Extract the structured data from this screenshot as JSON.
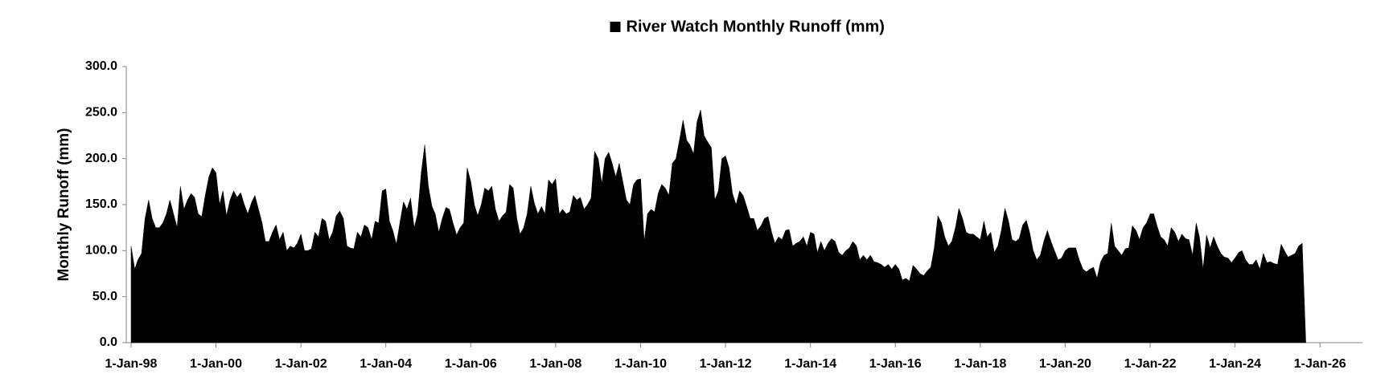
{
  "chart_data": {
    "type": "area",
    "legend": "top",
    "y_label": "Monthly Runoff (mm)",
    "xlim": [
      "1998-01-01",
      "2027-01-01"
    ],
    "xticks": [
      {
        "value": "1998-01-01",
        "label": "1-Jan-98"
      },
      {
        "value": "2000-01-01",
        "label": "1-Jan-00"
      },
      {
        "value": "2002-01-01",
        "label": "1-Jan-02"
      },
      {
        "value": "2004-01-01",
        "label": "1-Jan-04"
      },
      {
        "value": "2006-01-01",
        "label": "1-Jan-06"
      },
      {
        "value": "2008-01-01",
        "label": "1-Jan-08"
      },
      {
        "value": "2010-01-01",
        "label": "1-Jan-10"
      },
      {
        "value": "2012-01-01",
        "label": "1-Jan-12"
      },
      {
        "value": "2014-01-01",
        "label": "1-Jan-14"
      },
      {
        "value": "2016-01-01",
        "label": "1-Jan-16"
      },
      {
        "value": "2018-01-01",
        "label": "1-Jan-18"
      },
      {
        "value": "2020-01-01",
        "label": "1-Jan-20"
      },
      {
        "value": "2022-01-01",
        "label": "1-Jan-22"
      },
      {
        "value": "2024-01-01",
        "label": "1-Jan-24"
      },
      {
        "value": "2026-01-01",
        "label": "1-Jan-26"
      }
    ],
    "ylim": [
      0,
      300
    ],
    "yticks": [
      {
        "value": 0,
        "label": "0.0"
      },
      {
        "value": 50,
        "label": "50.0"
      },
      {
        "value": 100,
        "label": "100.0"
      },
      {
        "value": 150,
        "label": "150.0"
      },
      {
        "value": 200,
        "label": "200.0"
      },
      {
        "value": 250,
        "label": "250.0"
      },
      {
        "value": 300,
        "label": "300.0"
      }
    ],
    "x": [
      "1998-01-01",
      "1998-02-01",
      "1998-03-01",
      "1998-04-01",
      "1998-05-01",
      "1998-06-01",
      "1998-07-01",
      "1998-08-01",
      "1998-09-01",
      "1998-10-01",
      "1998-11-01",
      "1998-12-01",
      "1999-01-01",
      "1999-02-01",
      "1999-03-01",
      "1999-04-01",
      "1999-05-01",
      "1999-06-01",
      "1999-07-01",
      "1999-08-01",
      "1999-09-01",
      "1999-10-01",
      "1999-11-01",
      "1999-12-01",
      "2000-01-01",
      "2000-02-01",
      "2000-03-01",
      "2000-04-01",
      "2000-05-01",
      "2000-06-01",
      "2000-07-01",
      "2000-08-01",
      "2000-09-01",
      "2000-10-01",
      "2000-11-01",
      "2000-12-01",
      "2001-01-01",
      "2001-02-01",
      "2001-03-01",
      "2001-04-01",
      "2001-05-01",
      "2001-06-01",
      "2001-07-01",
      "2001-08-01",
      "2001-09-01",
      "2001-10-01",
      "2001-11-01",
      "2001-12-01",
      "2002-01-01",
      "2002-02-01",
      "2002-03-01",
      "2002-04-01",
      "2002-05-01",
      "2002-06-01",
      "2002-07-01",
      "2002-08-01",
      "2002-09-01",
      "2002-10-01",
      "2002-11-01",
      "2002-12-01",
      "2003-01-01",
      "2003-02-01",
      "2003-03-01",
      "2003-04-01",
      "2003-05-01",
      "2003-06-01",
      "2003-07-01",
      "2003-08-01",
      "2003-09-01",
      "2003-10-01",
      "2003-11-01",
      "2003-12-01",
      "2004-01-01",
      "2004-02-01",
      "2004-03-01",
      "2004-04-01",
      "2004-05-01",
      "2004-06-01",
      "2004-07-01",
      "2004-08-01",
      "2004-09-01",
      "2004-10-01",
      "2004-11-01",
      "2004-12-01",
      "2005-01-01",
      "2005-02-01",
      "2005-03-01",
      "2005-04-01",
      "2005-05-01",
      "2005-06-01",
      "2005-07-01",
      "2005-08-01",
      "2005-09-01",
      "2005-10-01",
      "2005-11-01",
      "2005-12-01",
      "2006-01-01",
      "2006-02-01",
      "2006-03-01",
      "2006-04-01",
      "2006-05-01",
      "2006-06-01",
      "2006-07-01",
      "2006-08-01",
      "2006-09-01",
      "2006-10-01",
      "2006-11-01",
      "2006-12-01",
      "2007-01-01",
      "2007-02-01",
      "2007-03-01",
      "2007-04-01",
      "2007-05-01",
      "2007-06-01",
      "2007-07-01",
      "2007-08-01",
      "2007-09-01",
      "2007-10-01",
      "2007-11-01",
      "2007-12-01",
      "2008-01-01",
      "2008-02-01",
      "2008-03-01",
      "2008-04-01",
      "2008-05-01",
      "2008-06-01",
      "2008-07-01",
      "2008-08-01",
      "2008-09-01",
      "2008-10-01",
      "2008-11-01",
      "2008-12-01",
      "2009-01-01",
      "2009-02-01",
      "2009-03-01",
      "2009-04-01",
      "2009-05-01",
      "2009-06-01",
      "2009-07-01",
      "2009-08-01",
      "2009-09-01",
      "2009-10-01",
      "2009-11-01",
      "2009-12-01",
      "2010-01-01",
      "2010-02-01",
      "2010-03-01",
      "2010-04-01",
      "2010-05-01",
      "2010-06-01",
      "2010-07-01",
      "2010-08-01",
      "2010-09-01",
      "2010-10-01",
      "2010-11-01",
      "2010-12-01",
      "2011-01-01",
      "2011-02-01",
      "2011-03-01",
      "2011-04-01",
      "2011-05-01",
      "2011-06-01",
      "2011-07-01",
      "2011-08-01",
      "2011-09-01",
      "2011-10-01",
      "2011-11-01",
      "2011-12-01",
      "2012-01-01",
      "2012-02-01",
      "2012-03-01",
      "2012-04-01",
      "2012-05-01",
      "2012-06-01",
      "2012-07-01",
      "2012-08-01",
      "2012-09-01",
      "2012-10-01",
      "2012-11-01",
      "2012-12-01",
      "2013-01-01",
      "2013-02-01",
      "2013-03-01",
      "2013-04-01",
      "2013-05-01",
      "2013-06-01",
      "2013-07-01",
      "2013-08-01",
      "2013-09-01",
      "2013-10-01",
      "2013-11-01",
      "2013-12-01",
      "2014-01-01",
      "2014-02-01",
      "2014-03-01",
      "2014-04-01",
      "2014-05-01",
      "2014-06-01",
      "2014-07-01",
      "2014-08-01",
      "2014-09-01",
      "2014-10-01",
      "2014-11-01",
      "2014-12-01",
      "2015-01-01",
      "2015-02-01",
      "2015-03-01",
      "2015-04-01",
      "2015-05-01",
      "2015-06-01",
      "2015-07-01",
      "2015-08-01",
      "2015-09-01",
      "2015-10-01",
      "2015-11-01",
      "2015-12-01",
      "2016-01-01",
      "2016-02-01",
      "2016-03-01",
      "2016-04-01",
      "2016-05-01",
      "2016-06-01",
      "2016-07-01",
      "2016-08-01",
      "2016-09-01",
      "2016-10-01",
      "2016-11-01",
      "2016-12-01",
      "2017-01-01",
      "2017-02-01",
      "2017-03-01",
      "2017-04-01",
      "2017-05-01",
      "2017-06-01",
      "2017-07-01",
      "2017-08-01",
      "2017-09-01",
      "2017-10-01",
      "2017-11-01",
      "2017-12-01",
      "2018-01-01",
      "2018-02-01",
      "2018-03-01",
      "2018-04-01",
      "2018-05-01",
      "2018-06-01",
      "2018-07-01",
      "2018-08-01",
      "2018-09-01",
      "2018-10-01",
      "2018-11-01",
      "2018-12-01",
      "2019-01-01",
      "2019-02-01",
      "2019-03-01",
      "2019-04-01",
      "2019-05-01",
      "2019-06-01",
      "2019-07-01",
      "2019-08-01",
      "2019-09-01",
      "2019-10-01",
      "2019-11-01",
      "2019-12-01",
      "2020-01-01",
      "2020-02-01",
      "2020-03-01",
      "2020-04-01",
      "2020-05-01",
      "2020-06-01",
      "2020-07-01",
      "2020-08-01",
      "2020-09-01",
      "2020-10-01",
      "2020-11-01",
      "2020-12-01",
      "2021-01-01",
      "2021-02-01",
      "2021-03-01",
      "2021-04-01",
      "2021-05-01",
      "2021-06-01",
      "2021-07-01",
      "2021-08-01",
      "2021-09-01",
      "2021-10-01",
      "2021-11-01",
      "2021-12-01",
      "2022-01-01",
      "2022-02-01",
      "2022-03-01",
      "2022-04-01",
      "2022-05-01",
      "2022-06-01",
      "2022-07-01",
      "2022-08-01",
      "2022-09-01",
      "2022-10-01",
      "2022-11-01",
      "2022-12-01",
      "2023-01-01",
      "2023-02-01",
      "2023-03-01",
      "2023-04-01",
      "2023-05-01",
      "2023-06-01",
      "2023-07-01",
      "2023-08-01",
      "2023-09-01",
      "2023-10-01",
      "2023-11-01",
      "2023-12-01",
      "2024-01-01",
      "2024-02-01",
      "2024-03-01",
      "2024-04-01",
      "2024-05-01",
      "2024-06-01",
      "2024-07-01",
      "2024-08-01",
      "2024-09-01",
      "2024-10-01",
      "2024-11-01",
      "2024-12-01",
      "2025-01-01",
      "2025-02-01",
      "2025-03-01",
      "2025-04-01",
      "2025-05-01",
      "2025-06-01",
      "2025-07-01",
      "2025-08-01",
      "2025-09-01"
    ],
    "series": [
      {
        "name": "River Watch Monthly Runoff (mm)",
        "color": "#000000",
        "values": [
          105,
          80,
          90,
          97,
          135,
          155,
          135,
          125,
          125,
          130,
          140,
          155,
          140,
          125,
          170,
          145,
          155,
          162,
          158,
          140,
          137,
          160,
          180,
          190,
          185,
          150,
          165,
          138,
          155,
          165,
          158,
          163,
          150,
          140,
          152,
          160,
          145,
          130,
          110,
          110,
          120,
          128,
          112,
          120,
          100,
          105,
          103,
          108,
          118,
          100,
          100,
          102,
          120,
          115,
          135,
          132,
          112,
          120,
          138,
          143,
          135,
          105,
          103,
          102,
          120,
          115,
          128,
          125,
          112,
          132,
          130,
          165,
          167,
          132,
          122,
          107,
          130,
          153,
          145,
          157,
          125,
          140,
          185,
          215,
          170,
          148,
          140,
          120,
          135,
          147,
          145,
          130,
          117,
          125,
          130,
          190,
          175,
          150,
          138,
          150,
          168,
          165,
          170,
          145,
          132,
          138,
          142,
          172,
          168,
          135,
          118,
          125,
          140,
          170,
          152,
          140,
          148,
          140,
          177,
          172,
          178,
          140,
          145,
          140,
          142,
          160,
          155,
          158,
          145,
          150,
          157,
          208,
          200,
          173,
          200,
          207,
          195,
          180,
          195,
          175,
          155,
          150,
          172,
          177,
          178,
          110,
          140,
          145,
          142,
          162,
          172,
          168,
          160,
          195,
          200,
          220,
          242,
          220,
          215,
          205,
          240,
          253,
          225,
          218,
          212,
          155,
          165,
          200,
          203,
          190,
          162,
          150,
          165,
          160,
          148,
          135,
          135,
          122,
          127,
          135,
          137,
          120,
          108,
          115,
          112,
          122,
          123,
          105,
          108,
          110,
          115,
          105,
          120,
          118,
          98,
          110,
          100,
          108,
          113,
          110,
          98,
          95,
          100,
          103,
          110,
          105,
          90,
          95,
          90,
          95,
          88,
          87,
          85,
          82,
          85,
          80,
          85,
          80,
          68,
          70,
          67,
          84,
          80,
          75,
          73,
          78,
          82,
          103,
          138,
          130,
          115,
          105,
          110,
          125,
          146,
          135,
          120,
          118,
          118,
          115,
          112,
          132,
          115,
          120,
          98,
          105,
          122,
          146,
          132,
          112,
          110,
          113,
          128,
          133,
          120,
          100,
          90,
          95,
          110,
          122,
          110,
          100,
          90,
          92,
          100,
          103,
          103,
          103,
          90,
          80,
          77,
          80,
          82,
          70,
          88,
          95,
          97,
          130,
          105,
          100,
          95,
          102,
          103,
          127,
          122,
          112,
          125,
          130,
          140,
          140,
          127,
          115,
          112,
          105,
          125,
          120,
          110,
          118,
          113,
          112,
          95,
          130,
          115,
          80,
          117,
          103,
          115,
          105,
          97,
          93,
          92,
          87,
          92,
          98,
          100,
          90,
          85,
          85,
          90,
          80,
          97,
          87,
          88,
          86,
          85,
          107,
          100,
          93,
          95,
          97,
          105,
          108,
          0
        ]
      }
    ]
  }
}
